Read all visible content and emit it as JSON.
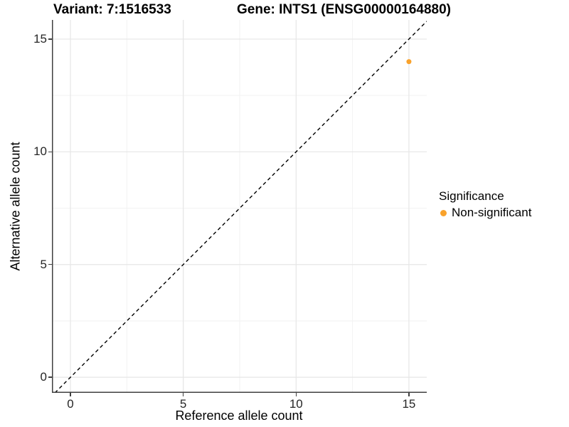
{
  "figure": {
    "title_left": "Variant: 7:1516533",
    "title_right": "Gene: INTS1 (ENSG00000164880)"
  },
  "legend": {
    "title": "Significance",
    "items": [
      {
        "label": "Non-significant",
        "color": "#F9A22B"
      }
    ]
  },
  "colors": {
    "axis_line": "#404040",
    "tick_label": "#262626",
    "grid_major": "#e6e6e6",
    "grid_minor": "#f2f2f2",
    "reference_line": "#000000",
    "point": "#F9A22B"
  },
  "chart_data": {
    "type": "scatter",
    "titles": [
      "Variant: 7:1516533",
      "Gene: INTS1 (ENSG00000164880)"
    ],
    "xlabel": "Reference allele count",
    "ylabel": "Alternative allele count",
    "xlim": [
      -0.82,
      15.79
    ],
    "ylim": [
      -0.69,
      15.85
    ],
    "x_ticks": [
      0,
      5,
      10,
      15
    ],
    "y_ticks": [
      0,
      5,
      10,
      15
    ],
    "x_minor_ticks": [
      2.5,
      7.5,
      12.5
    ],
    "y_minor_ticks": [
      2.5,
      7.5,
      12.5
    ],
    "grid": "major+minor",
    "legend_position": "right",
    "series": [
      {
        "name": "Non-significant",
        "color": "#F9A22B",
        "marker": "circle",
        "points": [
          [
            15,
            14
          ]
        ]
      }
    ],
    "reference_line": {
      "type": "identity y=x",
      "style": "dashed",
      "color": "#000000"
    }
  }
}
